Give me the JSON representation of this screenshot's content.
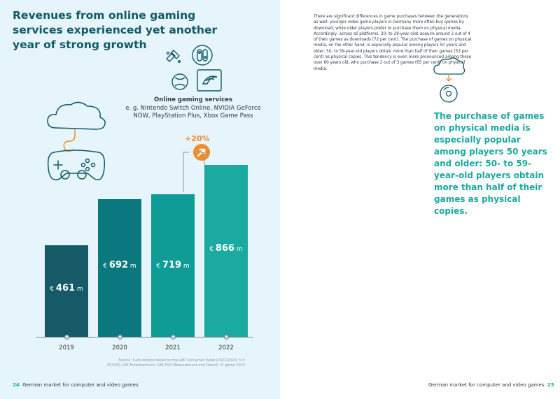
{
  "left_page": {
    "title": "Revenues from online gaming services experienced yet another year of strong growth",
    "services_title": "Online gaming services",
    "services_desc": "e. g. Nintendo Switch Online, NVIDIA GeForce NOW, PlayStation Plus, Xbox Game Pass",
    "growth_label": "+20%",
    "source": "Source: Calculations based on the GfK Consumer Panel (2022/2023; n = 25,000), GfK Entertainment, GfK PUG Measurement and Datacil. © game 2023",
    "page_number": "24",
    "footer_text": "German market for computer and video games"
  },
  "chart_data": {
    "type": "bar",
    "categories": [
      "2019",
      "2020",
      "2021",
      "2022"
    ],
    "values": [
      461,
      692,
      719,
      866
    ],
    "value_labels": [
      "461",
      "692",
      "719",
      "866"
    ],
    "currency": "€",
    "unit": "m",
    "annotation": "+20%",
    "colors": [
      "#155a66",
      "#0b7880",
      "#0f9c97",
      "#1aaaa0"
    ]
  },
  "right_page": {
    "body": "There are significant differences in game purchases between the generations as well: younger video game players in Germany more often buy games by download, while older players prefer to purchase them on physical media. Accordingly, across all platforms, 20- to 29-year-olds acquire around 3 out of 4 of their games as downloads (72 per cent). The purchase of games on physical media, on the other hand, is especially popular among players 50 years and older: 50- to 59-year-old players obtain more than half of their games (53 per cent) as physical copies. This tendency is even more pronounced among those over 60 years old, who purchase 2 out of 3 games (65 per cent) on physical media.",
    "quote": "The purchase of games on physical media is especially popular among players 50 years and older: 50- to 59-year-old players obtain more than half of their games as physical copies.",
    "footer_text": "German market for computer and video games",
    "page_number": "25"
  }
}
